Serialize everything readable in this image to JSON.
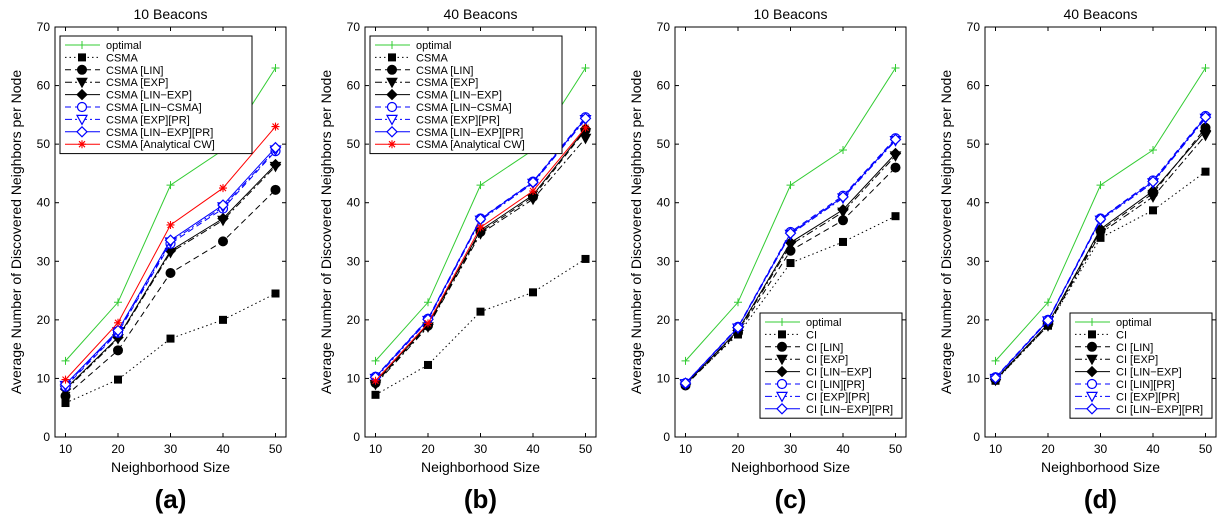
{
  "chart_data": [
    {
      "type": "line",
      "panel_label": "(a)",
      "title": "10 Beacons",
      "xlabel": "Neighborhood Size",
      "ylabel": "Average Number of Discovered Neighbors per Node",
      "xlim": [
        8,
        52
      ],
      "ylim": [
        0,
        70
      ],
      "xticks": [
        10,
        20,
        30,
        40,
        50
      ],
      "yticks": [
        0,
        10,
        20,
        30,
        40,
        50,
        60,
        70
      ],
      "legend_position": "top-left",
      "x": [
        10,
        20,
        30,
        40,
        50
      ],
      "series": [
        {
          "name": "optimal",
          "color": "#33cc33",
          "dash": "solid",
          "marker": "plus",
          "values": [
            13,
            23,
            43,
            49,
            63
          ]
        },
        {
          "name": "CSMA",
          "color": "#000000",
          "dash": "dotted",
          "marker": "square",
          "values": [
            5.8,
            9.8,
            16.8,
            20,
            24.5
          ]
        },
        {
          "name": "CSMA [LIN]",
          "color": "#000000",
          "dash": "dashed",
          "marker": "circle",
          "values": [
            7,
            14.8,
            28,
            33.4,
            42.2
          ]
        },
        {
          "name": "CSMA [EXP]",
          "color": "#000000",
          "dash": "dashdot",
          "marker": "triangle-down",
          "values": [
            8,
            16.8,
            31.5,
            37,
            46.2
          ]
        },
        {
          "name": "CSMA [LIN−EXP]",
          "color": "#000000",
          "dash": "solid",
          "marker": "diamond",
          "values": [
            8.2,
            17,
            31.8,
            37.3,
            46.5
          ]
        },
        {
          "name": "CSMA [LIN−CSMA]",
          "color": "#0000ff",
          "dash": "dashed",
          "marker": "circle-open",
          "values": [
            8.6,
            17.8,
            33,
            39,
            48.8
          ]
        },
        {
          "name": "CSMA [EXP][PR]",
          "color": "#0000ff",
          "dash": "dashdot",
          "marker": "triangle-down-open",
          "values": [
            8.8,
            18,
            33.3,
            39.3,
            49
          ]
        },
        {
          "name": "CSMA [LIN−EXP][PR]",
          "color": "#0000ff",
          "dash": "solid",
          "marker": "diamond-open",
          "values": [
            9,
            18.2,
            33.6,
            39.6,
            49.4
          ]
        },
        {
          "name": "CSMA [Analytical CW]",
          "color": "#ff0000",
          "dash": "solid",
          "marker": "asterisk",
          "values": [
            9.8,
            19.5,
            36.2,
            42.5,
            53
          ]
        }
      ]
    },
    {
      "type": "line",
      "panel_label": "(b)",
      "title": "40 Beacons",
      "xlabel": "Neighborhood Size",
      "ylabel": "Average Number of Discovered Neighbors per Node",
      "xlim": [
        8,
        52
      ],
      "ylim": [
        0,
        70
      ],
      "xticks": [
        10,
        20,
        30,
        40,
        50
      ],
      "yticks": [
        0,
        10,
        20,
        30,
        40,
        50,
        60,
        70
      ],
      "legend_position": "top-left",
      "x": [
        10,
        20,
        30,
        40,
        50
      ],
      "series": [
        {
          "name": "optimal",
          "color": "#33cc33",
          "dash": "solid",
          "marker": "plus",
          "values": [
            13,
            23,
            43,
            49,
            63
          ]
        },
        {
          "name": "CSMA",
          "color": "#000000",
          "dash": "dotted",
          "marker": "square",
          "values": [
            7.2,
            12.3,
            21.4,
            24.7,
            30.4
          ]
        },
        {
          "name": "CSMA [LIN]",
          "color": "#000000",
          "dash": "dashed",
          "marker": "circle",
          "values": [
            9.2,
            19,
            35,
            41,
            52.4
          ]
        },
        {
          "name": "CSMA [EXP]",
          "color": "#000000",
          "dash": "dashdot",
          "marker": "triangle-down",
          "values": [
            9,
            18.8,
            34.7,
            40.6,
            51
          ]
        },
        {
          "name": "CSMA [LIN−EXP]",
          "color": "#000000",
          "dash": "solid",
          "marker": "diamond",
          "values": [
            9.4,
            19.2,
            35.3,
            41.3,
            52.6
          ]
        },
        {
          "name": "CSMA [LIN−CSMA]",
          "color": "#0000ff",
          "dash": "dashed",
          "marker": "circle-open",
          "values": [
            10.3,
            20.2,
            37.3,
            43.6,
            54.6
          ]
        },
        {
          "name": "CSMA [EXP][PR]",
          "color": "#0000ff",
          "dash": "dashdot",
          "marker": "triangle-down-open",
          "values": [
            10,
            19.9,
            37,
            43.3,
            54.2
          ]
        },
        {
          "name": "CSMA [LIN−EXP][PR]",
          "color": "#0000ff",
          "dash": "solid",
          "marker": "diamond-open",
          "values": [
            10.2,
            20.1,
            37.2,
            43.5,
            54.4
          ]
        },
        {
          "name": "CSMA [Analytical CW]",
          "color": "#ff0000",
          "dash": "solid",
          "marker": "asterisk",
          "values": [
            9.6,
            19.4,
            35.8,
            42,
            52.8
          ]
        }
      ]
    },
    {
      "type": "line",
      "panel_label": "(c)",
      "title": "10 Beacons",
      "xlabel": "Neighborhood Size",
      "ylabel": "Average Number of Discovered Neighbors per Node",
      "xlim": [
        8,
        52
      ],
      "ylim": [
        0,
        70
      ],
      "xticks": [
        10,
        20,
        30,
        40,
        50
      ],
      "yticks": [
        0,
        10,
        20,
        30,
        40,
        50,
        60,
        70
      ],
      "legend_position": "bottom-right",
      "x": [
        10,
        20,
        30,
        40,
        50
      ],
      "series": [
        {
          "name": "optimal",
          "color": "#33cc33",
          "dash": "solid",
          "marker": "plus",
          "values": [
            13,
            23,
            43,
            49,
            63
          ]
        },
        {
          "name": "CI",
          "color": "#000000",
          "dash": "dotted",
          "marker": "square",
          "values": [
            9,
            17.5,
            29.7,
            33.3,
            37.7
          ]
        },
        {
          "name": "CI [LIN]",
          "color": "#000000",
          "dash": "dashed",
          "marker": "circle",
          "values": [
            8.8,
            17.8,
            31.8,
            37,
            46
          ]
        },
        {
          "name": "CI [EXP]",
          "color": "#000000",
          "dash": "dashdot",
          "marker": "triangle-down",
          "values": [
            9,
            18,
            32.8,
            38.4,
            48
          ]
        },
        {
          "name": "CI [LIN−EXP]",
          "color": "#000000",
          "dash": "solid",
          "marker": "diamond",
          "values": [
            9,
            18.2,
            33.2,
            38.8,
            48.4
          ]
        },
        {
          "name": "CI [LIN][PR]",
          "color": "#0000ff",
          "dash": "dashed",
          "marker": "circle-open",
          "values": [
            9.2,
            18.8,
            35,
            41.2,
            51
          ]
        },
        {
          "name": "CI [EXP][PR]",
          "color": "#0000ff",
          "dash": "dashdot",
          "marker": "triangle-down-open",
          "values": [
            9.1,
            18.6,
            34.6,
            40.8,
            50.6
          ]
        },
        {
          "name": "CI [LIN−EXP][PR]",
          "color": "#0000ff",
          "dash": "solid",
          "marker": "diamond-open",
          "values": [
            9.2,
            18.7,
            34.8,
            41,
            50.8
          ]
        }
      ]
    },
    {
      "type": "line",
      "panel_label": "(d)",
      "title": "40 Beacons",
      "xlabel": "Neighborhood Size",
      "ylabel": "Average Number of Discovered Neighbors per Node",
      "xlim": [
        8,
        52
      ],
      "ylim": [
        0,
        70
      ],
      "xticks": [
        10,
        20,
        30,
        40,
        50
      ],
      "yticks": [
        0,
        10,
        20,
        30,
        40,
        50,
        60,
        70
      ],
      "legend_position": "bottom-right",
      "x": [
        10,
        20,
        30,
        40,
        50
      ],
      "series": [
        {
          "name": "optimal",
          "color": "#33cc33",
          "dash": "solid",
          "marker": "plus",
          "values": [
            13,
            23,
            43,
            49,
            63
          ]
        },
        {
          "name": "CI",
          "color": "#000000",
          "dash": "dotted",
          "marker": "square",
          "values": [
            9.6,
            19,
            34,
            38.7,
            45.3
          ]
        },
        {
          "name": "CI [LIN]",
          "color": "#000000",
          "dash": "dashed",
          "marker": "circle",
          "values": [
            9.8,
            19.2,
            35.2,
            41.6,
            52.8
          ]
        },
        {
          "name": "CI [EXP]",
          "color": "#000000",
          "dash": "dashdot",
          "marker": "triangle-down",
          "values": [
            9.7,
            19,
            34.8,
            41,
            51.5
          ]
        },
        {
          "name": "CI [LIN−EXP]",
          "color": "#000000",
          "dash": "solid",
          "marker": "diamond",
          "values": [
            9.8,
            19.3,
            35.5,
            42,
            52.3
          ]
        },
        {
          "name": "CI [LIN][PR]",
          "color": "#0000ff",
          "dash": "dashed",
          "marker": "circle-open",
          "values": [
            10.2,
            20,
            37.3,
            43.8,
            54.8
          ]
        },
        {
          "name": "CI [EXP][PR]",
          "color": "#0000ff",
          "dash": "dashdot",
          "marker": "triangle-down-open",
          "values": [
            10,
            19.8,
            37,
            43.4,
            54.4
          ]
        },
        {
          "name": "CI [LIN−EXP][PR]",
          "color": "#0000ff",
          "dash": "solid",
          "marker": "diamond-open",
          "values": [
            10.1,
            19.9,
            37.2,
            43.6,
            54.6
          ]
        }
      ]
    }
  ]
}
